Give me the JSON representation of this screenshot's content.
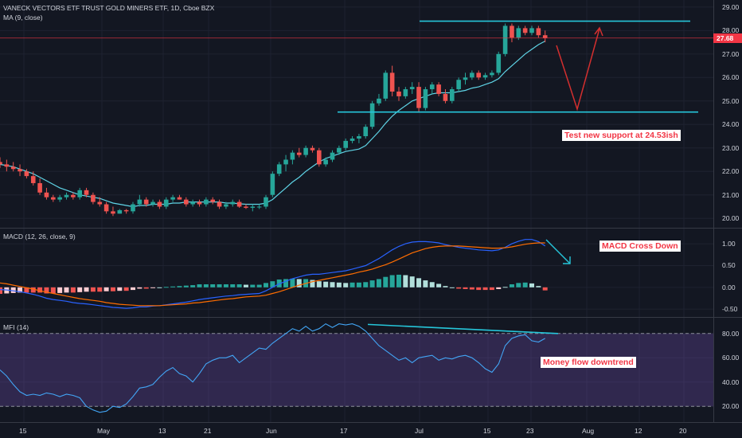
{
  "symbol_title": "VANECK VECTORS ETF TRUST GOLD MINERS ETF, 1D, Cboe BZX",
  "ma_label": "MA (9, close)",
  "macd_label": "MACD (12, 26, close, 9)",
  "mfi_label": "MFI (14)",
  "last_price": "27.68",
  "annotations": {
    "support": "Test new support at 24.53ish",
    "macd": "MACD Cross Down",
    "mfi": "Money flow downtrend"
  },
  "colors": {
    "background": "#131722",
    "up": "#26a69a",
    "down": "#ef5350",
    "ma_line": "#5fd4e6",
    "macd_line": "#2962ff",
    "signal_line": "#ff6d00",
    "mfi_line": "#42a5f5",
    "mfi_band": "#7e57c2",
    "annotation_text": "#f23645"
  },
  "chart_data": [
    {
      "type": "candlestick",
      "title": "VANECK VECTORS ETF TRUST GOLD MINERS ETF, 1D, Cboe BZX",
      "y_ticks": [
        "20.00",
        "21.00",
        "22.00",
        "23.00",
        "24.00",
        "25.00",
        "26.00",
        "27.00",
        "28.00",
        "29.00"
      ],
      "ylim": [
        19.6,
        29.3
      ],
      "x_ticks": [
        "15",
        "May",
        "13",
        "21",
        "Jun",
        "17",
        "Jul",
        "15",
        "23",
        "Aug",
        "12",
        "20"
      ],
      "last_price": 27.68,
      "horizontal_levels": [
        28.4,
        24.53
      ],
      "candles": [
        [
          22.4,
          22.6,
          22.15,
          22.3
        ],
        [
          22.3,
          22.5,
          22.0,
          22.2
        ],
        [
          22.2,
          22.4,
          22.0,
          22.1
        ],
        [
          22.1,
          22.3,
          21.8,
          22.0
        ],
        [
          22.0,
          22.1,
          21.7,
          21.8
        ],
        [
          21.8,
          22.0,
          21.4,
          21.5
        ],
        [
          21.5,
          21.7,
          21.0,
          21.1
        ],
        [
          21.1,
          21.3,
          20.8,
          20.9
        ],
        [
          20.9,
          21.0,
          20.7,
          20.8
        ],
        [
          20.8,
          21.0,
          20.7,
          20.9
        ],
        [
          20.9,
          21.1,
          20.8,
          21.0
        ],
        [
          21.0,
          21.1,
          20.8,
          20.9
        ],
        [
          20.9,
          21.3,
          20.8,
          21.2
        ],
        [
          21.2,
          21.3,
          20.9,
          21.0
        ],
        [
          21.0,
          21.1,
          20.6,
          20.7
        ],
        [
          20.7,
          20.9,
          20.5,
          20.6
        ],
        [
          20.6,
          20.7,
          20.2,
          20.3
        ],
        [
          20.3,
          20.5,
          20.1,
          20.2
        ],
        [
          20.2,
          20.4,
          20.2,
          20.35
        ],
        [
          20.35,
          20.4,
          20.2,
          20.3
        ],
        [
          20.3,
          20.7,
          20.2,
          20.6
        ],
        [
          20.6,
          21.0,
          20.5,
          20.8
        ],
        [
          20.8,
          20.9,
          20.5,
          20.6
        ],
        [
          20.6,
          20.8,
          20.5,
          20.7
        ],
        [
          20.7,
          20.8,
          20.4,
          20.5
        ],
        [
          20.5,
          20.9,
          20.4,
          20.8
        ],
        [
          20.8,
          21.0,
          20.7,
          20.9
        ],
        [
          20.9,
          21.0,
          20.8,
          20.8
        ],
        [
          20.8,
          20.9,
          20.5,
          20.6
        ],
        [
          20.6,
          20.8,
          20.5,
          20.7
        ],
        [
          20.7,
          20.8,
          20.5,
          20.6
        ],
        [
          20.6,
          20.9,
          20.5,
          20.8
        ],
        [
          20.8,
          20.9,
          20.6,
          20.7
        ],
        [
          20.7,
          20.8,
          20.4,
          20.5
        ],
        [
          20.5,
          20.7,
          20.4,
          20.6
        ],
        [
          20.6,
          20.8,
          20.5,
          20.7
        ],
        [
          20.7,
          20.8,
          20.45,
          20.5
        ],
        [
          20.5,
          20.6,
          20.4,
          20.45
        ],
        [
          20.45,
          20.6,
          20.3,
          20.5
        ],
        [
          20.5,
          20.6,
          20.4,
          20.5
        ],
        [
          20.5,
          21.0,
          20.4,
          20.9
        ],
        [
          21.0,
          22.0,
          20.9,
          21.9
        ],
        [
          21.9,
          22.4,
          21.8,
          22.3
        ],
        [
          22.3,
          22.7,
          22.0,
          22.5
        ],
        [
          22.5,
          22.9,
          22.3,
          22.8
        ],
        [
          22.8,
          23.0,
          22.6,
          22.7
        ],
        [
          22.7,
          23.1,
          22.6,
          23.0
        ],
        [
          23.0,
          23.1,
          22.8,
          22.9
        ],
        [
          22.9,
          23.0,
          22.2,
          22.3
        ],
        [
          22.3,
          22.6,
          22.2,
          22.5
        ],
        [
          22.5,
          22.9,
          22.4,
          22.8
        ],
        [
          22.8,
          23.1,
          22.7,
          23.0
        ],
        [
          23.0,
          23.4,
          22.9,
          23.3
        ],
        [
          23.3,
          23.5,
          23.2,
          23.4
        ],
        [
          23.4,
          23.6,
          23.2,
          23.5
        ],
        [
          23.5,
          24.0,
          23.4,
          23.9
        ],
        [
          23.9,
          25.0,
          23.8,
          24.9
        ],
        [
          24.9,
          25.3,
          24.8,
          25.1
        ],
        [
          25.1,
          26.3,
          25.0,
          26.2
        ],
        [
          26.2,
          26.5,
          25.2,
          25.4
        ],
        [
          25.4,
          25.6,
          25.0,
          25.2
        ],
        [
          25.2,
          25.6,
          25.1,
          25.5
        ],
        [
          25.5,
          25.8,
          25.3,
          25.6
        ],
        [
          25.6,
          25.8,
          24.5,
          24.7
        ],
        [
          24.7,
          25.6,
          24.6,
          25.5
        ],
        [
          25.5,
          25.8,
          25.3,
          25.7
        ],
        [
          25.7,
          25.8,
          25.2,
          25.3
        ],
        [
          25.3,
          25.5,
          24.9,
          25.0
        ],
        [
          25.0,
          25.6,
          24.9,
          25.5
        ],
        [
          25.5,
          26.0,
          25.4,
          25.9
        ],
        [
          25.9,
          26.2,
          25.7,
          26.0
        ],
        [
          26.0,
          26.3,
          25.9,
          26.2
        ],
        [
          26.2,
          26.3,
          25.9,
          26.0
        ],
        [
          26.0,
          26.2,
          25.9,
          26.1
        ],
        [
          26.1,
          26.3,
          26.0,
          26.2
        ],
        [
          26.2,
          27.1,
          26.1,
          27.0
        ],
        [
          27.0,
          28.3,
          26.9,
          28.2
        ],
        [
          28.2,
          28.3,
          27.5,
          27.7
        ],
        [
          27.7,
          28.2,
          27.6,
          28.1
        ],
        [
          28.1,
          28.2,
          27.8,
          27.9
        ],
        [
          27.9,
          28.2,
          27.8,
          28.1
        ],
        [
          28.1,
          28.2,
          27.7,
          27.8
        ],
        [
          27.8,
          28.0,
          27.5,
          27.68
        ]
      ],
      "ma9": [
        22.3,
        22.25,
        22.2,
        22.1,
        22.0,
        21.9,
        21.75,
        21.6,
        21.45,
        21.3,
        21.2,
        21.1,
        21.0,
        20.95,
        20.9,
        20.85,
        20.75,
        20.65,
        20.6,
        20.55,
        20.5,
        20.55,
        20.55,
        20.6,
        20.6,
        20.6,
        20.65,
        20.65,
        20.7,
        20.7,
        20.7,
        20.7,
        20.7,
        20.7,
        20.65,
        20.65,
        20.62,
        20.6,
        20.6,
        20.6,
        20.65,
        20.8,
        21.05,
        21.3,
        21.55,
        21.75,
        22.0,
        22.2,
        22.4,
        22.55,
        22.65,
        22.75,
        22.85,
        22.9,
        22.95,
        23.1,
        23.4,
        23.7,
        24.05,
        24.35,
        24.6,
        24.8,
        25.0,
        25.1,
        25.2,
        25.3,
        25.35,
        25.35,
        25.35,
        25.4,
        25.45,
        25.55,
        25.6,
        25.7,
        25.8,
        25.95,
        26.25,
        26.5,
        26.75,
        27.0,
        27.2,
        27.4,
        27.55
      ]
    },
    {
      "type": "line+histogram",
      "title": "MACD (12, 26, close, 9)",
      "y_ticks": [
        "1.00",
        "0.50",
        "0.00",
        "-0.50"
      ],
      "ylim": [
        -0.68,
        1.35
      ],
      "series": [
        {
          "name": "MACD",
          "values": [
            -0.05,
            -0.06,
            -0.08,
            -0.1,
            -0.13,
            -0.16,
            -0.2,
            -0.25,
            -0.28,
            -0.3,
            -0.32,
            -0.35,
            -0.37,
            -0.38,
            -0.4,
            -0.42,
            -0.44,
            -0.46,
            -0.47,
            -0.48,
            -0.47,
            -0.45,
            -0.45,
            -0.43,
            -0.42,
            -0.4,
            -0.38,
            -0.36,
            -0.34,
            -0.31,
            -0.28,
            -0.26,
            -0.24,
            -0.22,
            -0.2,
            -0.19,
            -0.17,
            -0.16,
            -0.15,
            -0.14,
            -0.08,
            0.0,
            0.08,
            0.14,
            0.2,
            0.24,
            0.28,
            0.3,
            0.3,
            0.32,
            0.34,
            0.36,
            0.38,
            0.42,
            0.46,
            0.5,
            0.58,
            0.66,
            0.76,
            0.86,
            0.94,
            1.0,
            1.04,
            1.05,
            1.05,
            1.04,
            1.02,
            0.98,
            0.95,
            0.92,
            0.9,
            0.88,
            0.86,
            0.85,
            0.84,
            0.86,
            0.92,
            1.0,
            1.06,
            1.1,
            1.1,
            1.05,
            0.95
          ]
        },
        {
          "name": "Signal",
          "values": [
            0.1,
            0.08,
            0.05,
            0.02,
            -0.01,
            -0.04,
            -0.08,
            -0.11,
            -0.14,
            -0.17,
            -0.2,
            -0.23,
            -0.26,
            -0.28,
            -0.3,
            -0.32,
            -0.35,
            -0.37,
            -0.39,
            -0.4,
            -0.41,
            -0.42,
            -0.42,
            -0.42,
            -0.42,
            -0.41,
            -0.4,
            -0.39,
            -0.38,
            -0.36,
            -0.35,
            -0.33,
            -0.31,
            -0.29,
            -0.27,
            -0.26,
            -0.24,
            -0.22,
            -0.21,
            -0.2,
            -0.18,
            -0.14,
            -0.1,
            -0.05,
            0.0,
            0.05,
            0.09,
            0.13,
            0.16,
            0.19,
            0.22,
            0.25,
            0.28,
            0.31,
            0.35,
            0.38,
            0.42,
            0.47,
            0.52,
            0.58,
            0.65,
            0.72,
            0.79,
            0.84,
            0.89,
            0.92,
            0.94,
            0.95,
            0.95,
            0.95,
            0.94,
            0.93,
            0.92,
            0.91,
            0.9,
            0.9,
            0.91,
            0.93,
            0.96,
            0.99,
            1.01,
            1.02,
            1.02
          ]
        },
        {
          "name": "Histogram",
          "values": [
            -0.15,
            -0.14,
            -0.13,
            -0.12,
            -0.12,
            -0.12,
            -0.12,
            -0.14,
            -0.14,
            -0.13,
            -0.12,
            -0.12,
            -0.11,
            -0.1,
            -0.1,
            -0.1,
            -0.09,
            -0.09,
            -0.08,
            -0.08,
            -0.06,
            -0.03,
            -0.03,
            -0.01,
            0.0,
            0.01,
            0.02,
            0.03,
            0.04,
            0.05,
            0.07,
            0.07,
            0.07,
            0.07,
            0.07,
            0.07,
            0.07,
            0.06,
            0.06,
            0.06,
            0.1,
            0.14,
            0.18,
            0.19,
            0.2,
            0.19,
            0.19,
            0.17,
            0.14,
            0.13,
            0.12,
            0.11,
            0.1,
            0.11,
            0.11,
            0.12,
            0.16,
            0.19,
            0.24,
            0.28,
            0.29,
            0.28,
            0.25,
            0.21,
            0.16,
            0.12,
            0.08,
            0.03,
            0.0,
            -0.03,
            -0.04,
            -0.05,
            -0.06,
            -0.06,
            -0.06,
            -0.04,
            0.01,
            0.07,
            0.1,
            0.11,
            0.09,
            0.03,
            -0.07
          ]
        }
      ]
    },
    {
      "type": "line",
      "title": "MFI (14)",
      "y_ticks": [
        "80.00",
        "60.00",
        "40.00",
        "20.00"
      ],
      "ylim": [
        7,
        93
      ],
      "bands": [
        20,
        80
      ],
      "series": [
        {
          "name": "MFI",
          "values": [
            50,
            45,
            38,
            32,
            29,
            30,
            29,
            31,
            30,
            28,
            30,
            29,
            27,
            20,
            17,
            15,
            16,
            20,
            19,
            22,
            28,
            35,
            36,
            38,
            44,
            49,
            52,
            47,
            45,
            40,
            47,
            55,
            58,
            60,
            60,
            62,
            56,
            60,
            64,
            68,
            67,
            72,
            76,
            80,
            84,
            82,
            86,
            82,
            84,
            88,
            85,
            88,
            87,
            88,
            86,
            82,
            76,
            70,
            66,
            62,
            58,
            60,
            56,
            60,
            61,
            62,
            58,
            60,
            59,
            61,
            62,
            60,
            56,
            51,
            48,
            55,
            70,
            76,
            78,
            79,
            74,
            73,
            76
          ]
        }
      ]
    }
  ]
}
